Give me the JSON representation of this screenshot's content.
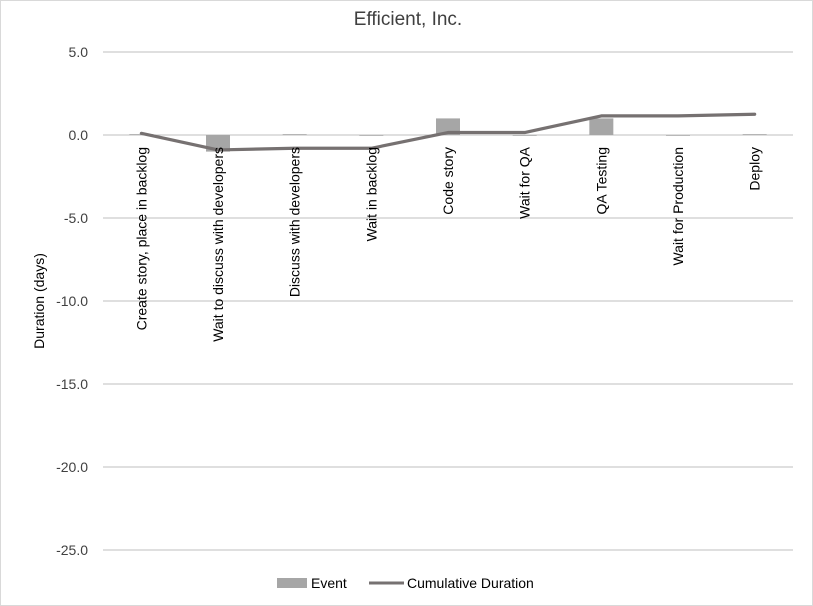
{
  "chart_data": {
    "type": "bar",
    "title": "Efficient, Inc.",
    "ylabel": "Duration (days)",
    "xlabel": "",
    "ylim": [
      -25,
      5
    ],
    "yticks": [
      5.0,
      0.0,
      -5.0,
      -10.0,
      -15.0,
      -20.0,
      -25.0
    ],
    "ytick_labels": [
      "5.0",
      "0.0",
      "-5.0",
      "-10.0",
      "-15.0",
      "-20.0",
      "-25.0"
    ],
    "categories": [
      "Create story, place in backlog",
      "Wait to discuss with developers",
      "Discuss with developers",
      "Wait in backlog",
      "Code story",
      "Wait for QA",
      "QA Testing",
      "Wait for Production",
      "Deploy"
    ],
    "series": [
      {
        "name": "Event",
        "type": "bar",
        "color": "#a6a6a6",
        "values": [
          0.05,
          -1.0,
          0.05,
          0.0,
          1.0,
          0.0,
          1.0,
          0.0,
          0.05
        ]
      },
      {
        "name": "Cumulative Duration",
        "type": "line",
        "color": "#767171",
        "values": [
          0.1,
          -0.9,
          -0.8,
          -0.8,
          0.15,
          0.15,
          1.15,
          1.15,
          1.25
        ]
      }
    ],
    "grid": true,
    "legend_position": "bottom"
  }
}
